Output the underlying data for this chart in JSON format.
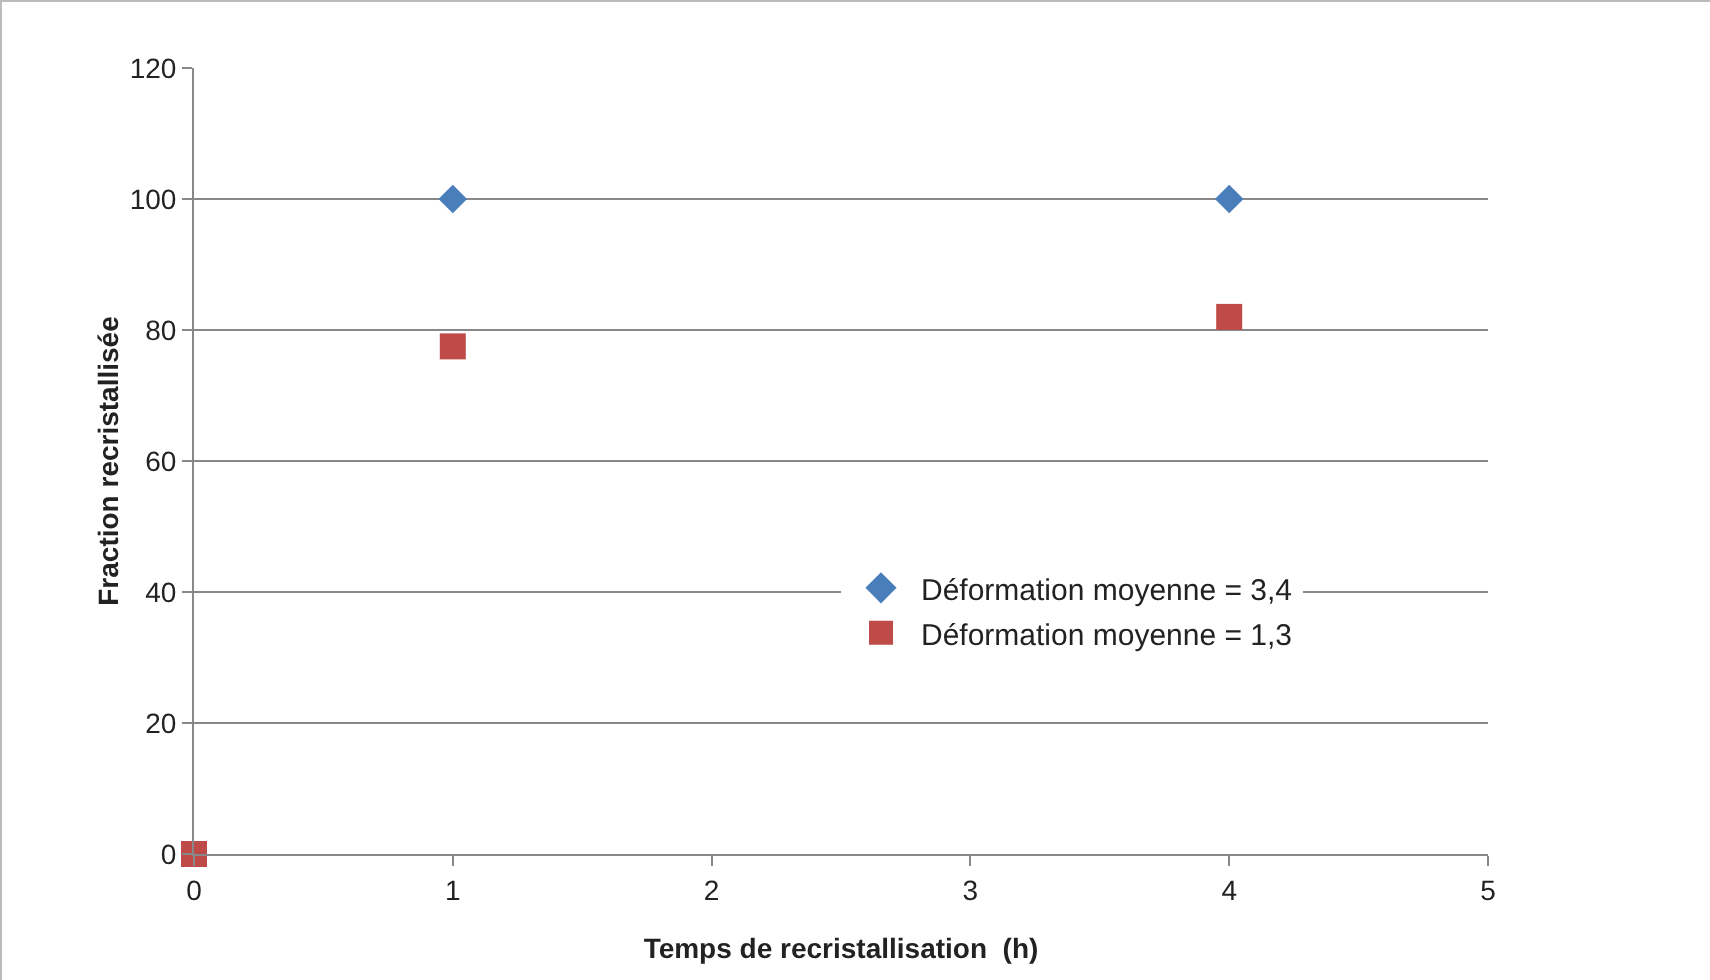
{
  "chart_data": {
    "type": "scatter",
    "xlabel": "Temps de recristallisation  (h)",
    "ylabel": "Fraction recristallisée",
    "series": [
      {
        "name": "Déformation moyenne = 3,4",
        "color": "#4a7ebb",
        "marker": "diamond",
        "x": [
          1,
          4
        ],
        "values": [
          100,
          100
        ]
      },
      {
        "name": "Déformation moyenne = 1,3",
        "color": "#be4b48",
        "marker": "square",
        "x": [
          0,
          1,
          4
        ],
        "values": [
          0,
          77.5,
          82
        ]
      }
    ],
    "xlim": [
      0,
      5
    ],
    "xticks": [
      0,
      1,
      2,
      3,
      4,
      5
    ],
    "ylim": [
      0,
      120
    ],
    "yticks": [
      0,
      20,
      40,
      60,
      80,
      100,
      120
    ],
    "grid": "y",
    "legend": "bottom right"
  }
}
